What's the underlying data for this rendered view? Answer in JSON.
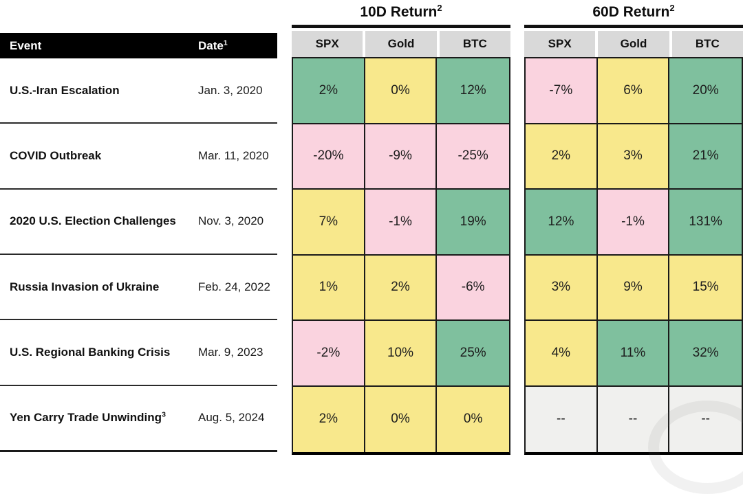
{
  "chart_data": {
    "type": "table",
    "left_header": {
      "event_label": "Event",
      "date_label": "Date",
      "date_sup": "1"
    },
    "events": [
      {
        "name": "U.S.-Iran Escalation",
        "sup": "",
        "date": "Jan. 3, 2020"
      },
      {
        "name": "COVID Outbreak",
        "sup": "",
        "date": "Mar. 11, 2020"
      },
      {
        "name": "2020 U.S. Election Challenges",
        "sup": "",
        "date": "Nov. 3, 2020"
      },
      {
        "name": "Russia Invasion of Ukraine",
        "sup": "",
        "date": "Feb. 24, 2022"
      },
      {
        "name": "U.S. Regional Banking Crisis",
        "sup": "",
        "date": "Mar. 9, 2023"
      },
      {
        "name": "Yen Carry Trade Unwinding",
        "sup": "3",
        "date": "Aug. 5, 2024"
      }
    ],
    "sections": [
      {
        "title": "10D Return",
        "sup": "2",
        "columns": [
          "SPX",
          "Gold",
          "BTC"
        ],
        "rows": [
          [
            {
              "value": "2%",
              "tone": "green"
            },
            {
              "value": "0%",
              "tone": "yellow"
            },
            {
              "value": "12%",
              "tone": "green"
            }
          ],
          [
            {
              "value": "-20%",
              "tone": "pink"
            },
            {
              "value": "-9%",
              "tone": "pink"
            },
            {
              "value": "-25%",
              "tone": "pink"
            }
          ],
          [
            {
              "value": "7%",
              "tone": "yellow"
            },
            {
              "value": "-1%",
              "tone": "pink"
            },
            {
              "value": "19%",
              "tone": "green"
            }
          ],
          [
            {
              "value": "1%",
              "tone": "yellow"
            },
            {
              "value": "2%",
              "tone": "yellow"
            },
            {
              "value": "-6%",
              "tone": "pink"
            }
          ],
          [
            {
              "value": "-2%",
              "tone": "pink"
            },
            {
              "value": "10%",
              "tone": "yellow"
            },
            {
              "value": "25%",
              "tone": "green"
            }
          ],
          [
            {
              "value": "2%",
              "tone": "yellow"
            },
            {
              "value": "0%",
              "tone": "yellow"
            },
            {
              "value": "0%",
              "tone": "yellow"
            }
          ]
        ]
      },
      {
        "title": "60D Return",
        "sup": "2",
        "columns": [
          "SPX",
          "Gold",
          "BTC"
        ],
        "rows": [
          [
            {
              "value": "-7%",
              "tone": "pink"
            },
            {
              "value": "6%",
              "tone": "yellow"
            },
            {
              "value": "20%",
              "tone": "green"
            }
          ],
          [
            {
              "value": "2%",
              "tone": "yellow"
            },
            {
              "value": "3%",
              "tone": "yellow"
            },
            {
              "value": "21%",
              "tone": "green"
            }
          ],
          [
            {
              "value": "12%",
              "tone": "green"
            },
            {
              "value": "-1%",
              "tone": "pink"
            },
            {
              "value": "131%",
              "tone": "green"
            }
          ],
          [
            {
              "value": "3%",
              "tone": "yellow"
            },
            {
              "value": "9%",
              "tone": "yellow"
            },
            {
              "value": "15%",
              "tone": "yellow"
            }
          ],
          [
            {
              "value": "4%",
              "tone": "yellow"
            },
            {
              "value": "11%",
              "tone": "green"
            },
            {
              "value": "32%",
              "tone": "green"
            }
          ],
          [
            {
              "value": "--",
              "tone": "gray"
            },
            {
              "value": "--",
              "tone": "gray"
            },
            {
              "value": "--",
              "tone": "gray"
            }
          ]
        ]
      }
    ]
  },
  "colors": {
    "green": "#7fc09e",
    "yellow": "#f8e88c",
    "pink": "#fad3df",
    "gray": "#f0f0ee",
    "header_gray": "#d9d9d9",
    "header_black": "#000000"
  }
}
